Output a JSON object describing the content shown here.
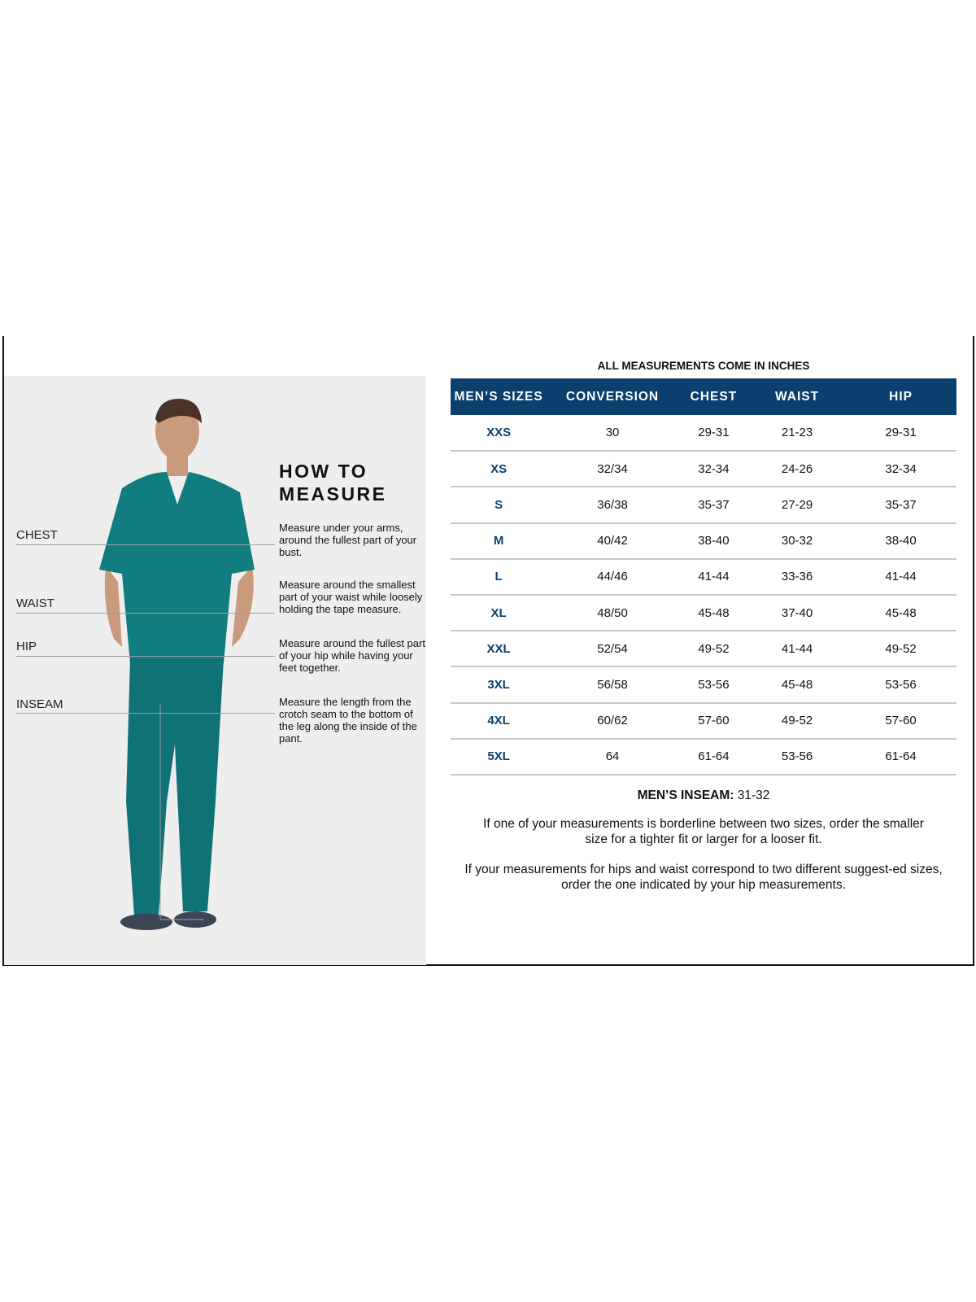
{
  "how_to": {
    "title_line1": "HOW TO",
    "title_line2": "MEASURE",
    "measurements": [
      {
        "label": "CHEST",
        "description": "Measure under your arms, around the fullest part of your bust."
      },
      {
        "label": "WAIST",
        "description": "Measure around the smallest part of your waist while loosely holding the tape measure."
      },
      {
        "label": "HIP",
        "description": "Measure around the fullest part of your hip while having your feet together."
      },
      {
        "label": "INSEAM",
        "description": "Measure the length from the crotch seam to the bottom of the leg along the inside of the pant."
      }
    ]
  },
  "size_chart": {
    "title": "ALL MEASUREMENTS COME IN INCHES",
    "header_color": "#0b3f6e",
    "columns": [
      "MEN’S SIZES",
      "CONVERSION",
      "CHEST",
      "WAIST",
      "HIP"
    ],
    "rows": [
      [
        "XXS",
        "30",
        "29-31",
        "21-23",
        "29-31"
      ],
      [
        "XS",
        "32/34",
        "32-34",
        "24-26",
        "32-34"
      ],
      [
        "S",
        "36/38",
        "35-37",
        "27-29",
        "35-37"
      ],
      [
        "M",
        "40/42",
        "38-40",
        "30-32",
        "38-40"
      ],
      [
        "L",
        "44/46",
        "41-44",
        "33-36",
        "41-44"
      ],
      [
        "XL",
        "48/50",
        "45-48",
        "37-40",
        "45-48"
      ],
      [
        "XXL",
        "52/54",
        "49-52",
        "41-44",
        "49-52"
      ],
      [
        "3XL",
        "56/58",
        "53-56",
        "45-48",
        "53-56"
      ],
      [
        "4XL",
        "60/62",
        "57-60",
        "49-52",
        "57-60"
      ],
      [
        "5XL",
        "64",
        "61-64",
        "53-56",
        "61-64"
      ]
    ]
  },
  "notes": {
    "inseam_label": "MEN’S INSEAM:",
    "inseam_value": "31-32",
    "note1": "If one of your measurements is borderline between two sizes, order the smaller size for a tighter fit or larger for a looser fit.",
    "note2": "If your measurements for hips and waist correspond to two different suggest-ed sizes, order the one indicated by your hip measurements."
  }
}
